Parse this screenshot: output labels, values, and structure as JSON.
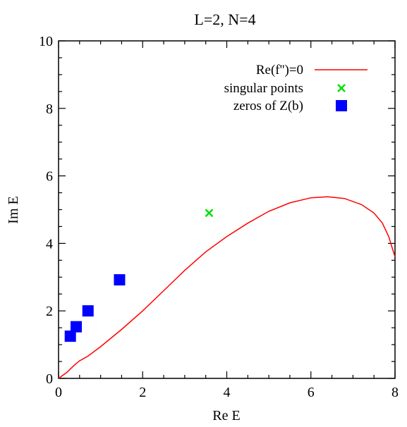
{
  "chart_data": {
    "type": "scatter",
    "title": "L=2, N=4",
    "xlabel": "Re E",
    "ylabel": "Im E",
    "xlim": [
      0,
      8
    ],
    "ylim": [
      0,
      10
    ],
    "xticks": [
      "0",
      "2",
      "4",
      "6",
      "8"
    ],
    "yticks": [
      "0",
      "2",
      "4",
      "6",
      "8",
      "10"
    ],
    "legend_position": "top-right",
    "series": [
      {
        "name": "Re(f'')=0",
        "kind": "line",
        "color": "#ff0000",
        "points": [
          [
            0.0,
            0.0
          ],
          [
            0.2,
            0.18
          ],
          [
            0.3,
            0.3
          ],
          [
            0.4,
            0.42
          ],
          [
            0.5,
            0.52
          ],
          [
            0.7,
            0.66
          ],
          [
            1.0,
            0.94
          ],
          [
            1.5,
            1.45
          ],
          [
            2.0,
            2.0
          ],
          [
            2.5,
            2.6
          ],
          [
            3.0,
            3.2
          ],
          [
            3.5,
            3.75
          ],
          [
            4.0,
            4.2
          ],
          [
            4.5,
            4.6
          ],
          [
            5.0,
            4.95
          ],
          [
            5.5,
            5.2
          ],
          [
            6.0,
            5.35
          ],
          [
            6.4,
            5.38
          ],
          [
            6.8,
            5.33
          ],
          [
            7.2,
            5.15
          ],
          [
            7.5,
            4.9
          ],
          [
            7.7,
            4.6
          ],
          [
            7.85,
            4.2
          ],
          [
            7.95,
            3.8
          ],
          [
            8.0,
            3.6
          ]
        ]
      },
      {
        "name": "singular points",
        "kind": "marker-x",
        "color": "#00e000",
        "points": [
          [
            3.58,
            4.9
          ]
        ]
      },
      {
        "name": "zeros of Z(b)",
        "kind": "marker-square",
        "color": "#0000ff",
        "points": [
          [
            0.28,
            1.25
          ],
          [
            0.42,
            1.53
          ],
          [
            0.7,
            2.0
          ],
          [
            1.45,
            2.92
          ]
        ]
      }
    ]
  }
}
